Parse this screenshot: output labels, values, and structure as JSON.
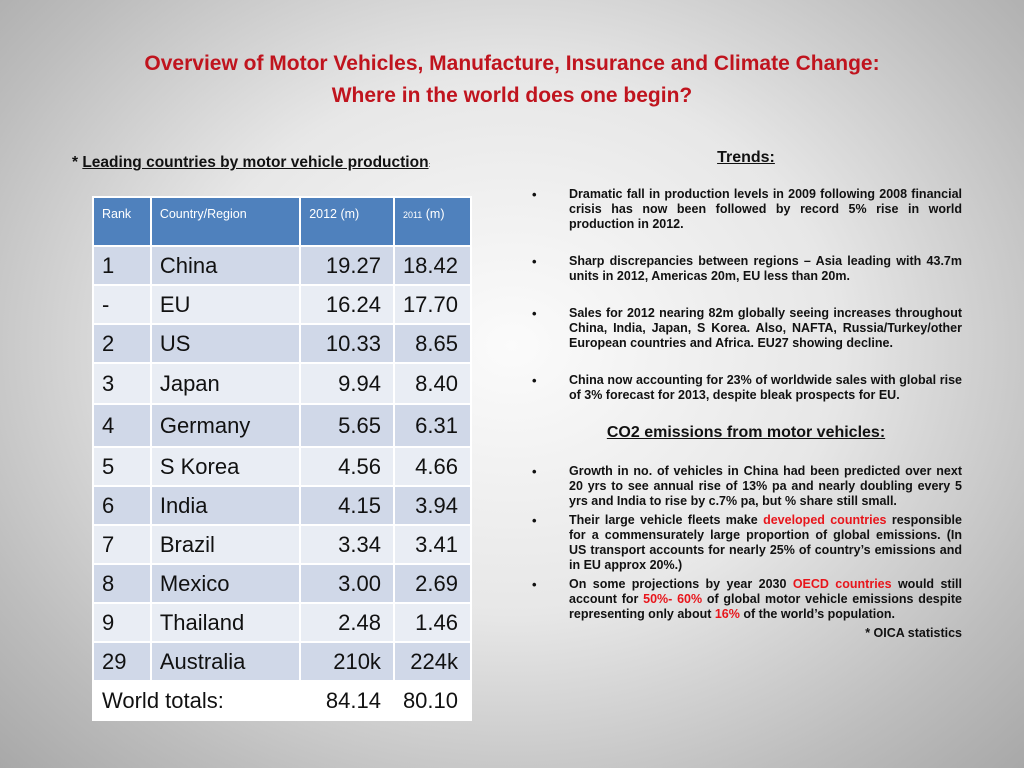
{
  "title": {
    "line1": "Overview of  Motor Vehicles, Manufacture, Insurance  and Climate Change:",
    "line2": "Where in the world does one begin?"
  },
  "left": {
    "prefix": "* ",
    "heading": "Leading countries by motor vehicle production",
    "heading_suffix": ":"
  },
  "table": {
    "headers": {
      "rank": "Rank",
      "country": "Country/Region",
      "y2012": "2012  (m)",
      "y2011_year": "2011",
      "y2011_unit": " (m)"
    },
    "rows": [
      {
        "rank": "1",
        "country": "China",
        "v2012": "19.27",
        "v2011": "18.42"
      },
      {
        "rank": "-",
        "country": "EU",
        "v2012": "16.24",
        "v2011": "17.70"
      },
      {
        "rank": "2",
        "country": "US",
        "v2012": "10.33",
        "v2011": "8.65"
      },
      {
        "rank": "3",
        "country": "Japan",
        "v2012": "9.94",
        "v2011": "8.40"
      },
      {
        "rank": "4",
        "country": "Germany",
        "v2012": "5.65",
        "v2011": "6.31"
      },
      {
        "rank": "5",
        "country": "S Korea",
        "v2012": "4.56",
        "v2011": "4.66"
      },
      {
        "rank": "6",
        "country": "India",
        "v2012": "4.15",
        "v2011": "3.94"
      },
      {
        "rank": "7",
        "country": "Brazil",
        "v2012": "3.34",
        "v2011": "3.41"
      },
      {
        "rank": "8",
        "country": "Mexico",
        "v2012": "3.00",
        "v2011": "2.69"
      },
      {
        "rank": "9",
        "country": "Thailand",
        "v2012": "2.48",
        "v2011": "1.46"
      },
      {
        "rank": "29",
        "country": "Australia",
        "v2012": "210k",
        "v2011": "224k"
      }
    ],
    "totals": {
      "label": "World totals:",
      "v2012": "84.14",
      "v2011": "80.10"
    }
  },
  "trends": {
    "heading": "Trends:",
    "bullets": [
      "Dramatic fall in production levels in 2009 following 2008 financial crisis has now been followed by record 5% rise in world production in 2012.",
      "Sharp discrepancies between regions – Asia leading with 43.7m units in 2012, Americas 20m, EU less than 20m.",
      "Sales for 2012 nearing 82m globally seeing increases throughout China, India, Japan, S Korea. Also, NAFTA, Russia/Turkey/other European countries and Africa. EU27 showing decline.",
      "China now accounting for 23% of worldwide sales with global rise of 3% forecast for 2013, despite bleak prospects for EU."
    ]
  },
  "co2": {
    "heading": "CO2 emissions from motor vehicles:",
    "b1": "Growth in no. of vehicles in China  had been predicted  over next 20 yrs to see annual rise of 13% pa and nearly doubling every 5 yrs and India to rise by c.7% pa, but % share still small.",
    "b2": {
      "pre": "Their  large   vehicle  fleets  make ",
      "red": "developed  countries",
      "post": " responsible for a commensurately large proportion of global emissions.   (In  US  transport  accounts  for  nearly  25%  of country’s emissions and in EU approx 20%.)"
    },
    "b3": {
      "p1": "On some projections by year 2030 ",
      "r1": "OECD countries",
      "p2": " would still account for ",
      "r2": "50%- 60%",
      "p3": " of global motor vehicle emissions despite representing only about ",
      "r3": "16%",
      "p4": " of the world’s population."
    },
    "footnote": "* OICA statistics"
  },
  "colors": {
    "title_red": "#c0141e",
    "highlight_red": "#e8151b",
    "table_header_blue": "#4f81bd",
    "table_row_dark": "#d0d8e8",
    "table_row_light": "#e9edf4"
  }
}
